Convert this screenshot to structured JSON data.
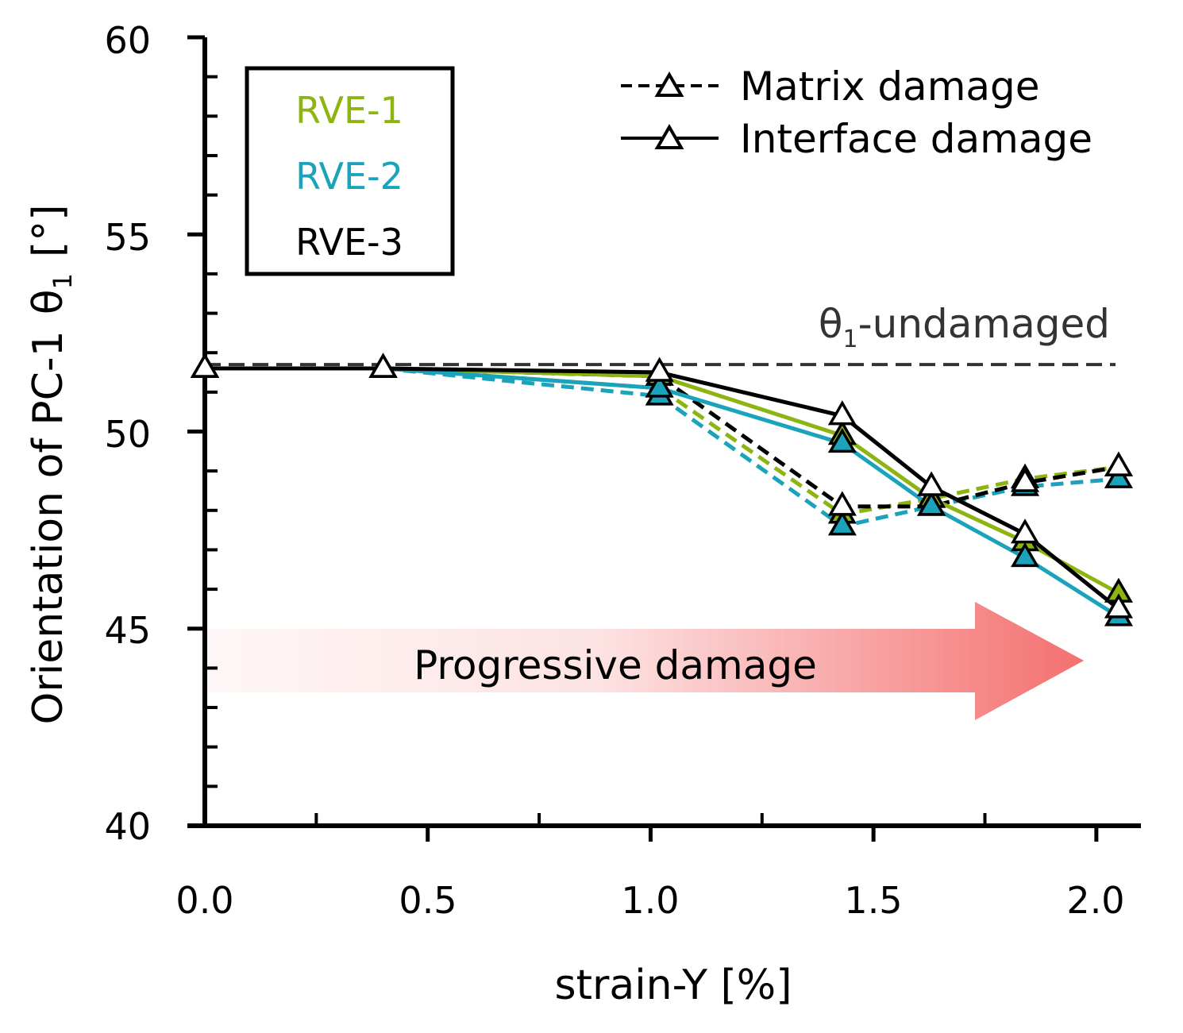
{
  "chart_data": {
    "type": "line",
    "xlabel": "strain-Y [%]",
    "ylabel": "Orientation of PC-1",
    "ylabel_symbol": "θ",
    "ylabel_subscript": "1",
    "ylabel_unit": "[°]",
    "xlim": [
      0.0,
      2.1
    ],
    "ylim": [
      40,
      60
    ],
    "x_ticks": [
      "0.0",
      "0.5",
      "1.0",
      "1.5",
      "2.0"
    ],
    "y_ticks": [
      "40",
      "45",
      "50",
      "55",
      "60"
    ],
    "rve_legend": [
      {
        "name": "RVE-1",
        "color": "#8DB511"
      },
      {
        "name": "RVE-2",
        "color": "#1AA3BA"
      },
      {
        "name": "RVE-3",
        "color": "#000000"
      }
    ],
    "style_legend": [
      {
        "label": "Matrix damage",
        "linestyle": "dashed"
      },
      {
        "label": "Interface damage",
        "linestyle": "solid"
      }
    ],
    "reference_line": {
      "symbol": "θ",
      "subscript": "1",
      "suffix": "-undamaged",
      "value": 51.7,
      "color": "#333333"
    },
    "annotation": {
      "text": "Progressive damage",
      "color": "#F47070"
    },
    "series": [
      {
        "name": "RVE-1",
        "damage": "Matrix damage",
        "color": "#8DB511",
        "x": [
          0.0,
          0.4,
          1.02,
          1.43,
          1.63,
          1.84,
          2.05
        ],
        "y": [
          51.6,
          51.6,
          51.1,
          47.9,
          48.3,
          48.8,
          49.1
        ]
      },
      {
        "name": "RVE-2",
        "damage": "Matrix damage",
        "color": "#1AA3BA",
        "x": [
          0.0,
          0.4,
          1.02,
          1.43,
          1.63,
          1.84,
          2.05
        ],
        "y": [
          51.6,
          51.6,
          50.9,
          47.6,
          48.1,
          48.6,
          48.8
        ]
      },
      {
        "name": "RVE-3",
        "damage": "Matrix damage",
        "color": "#000000",
        "x": [
          0.0,
          0.4,
          1.02,
          1.43,
          1.63,
          1.84,
          2.05
        ],
        "y": [
          51.6,
          51.6,
          51.4,
          48.1,
          48.1,
          48.7,
          49.1
        ]
      },
      {
        "name": "RVE-1",
        "damage": "Interface damage",
        "color": "#8DB511",
        "x": [
          0.0,
          0.4,
          1.02,
          1.43,
          1.63,
          1.84,
          2.05
        ],
        "y": [
          51.6,
          51.6,
          51.4,
          49.9,
          48.3,
          47.2,
          45.9
        ]
      },
      {
        "name": "RVE-2",
        "damage": "Interface damage",
        "color": "#1AA3BA",
        "x": [
          0.0,
          0.4,
          1.02,
          1.43,
          1.63,
          1.84,
          2.05
        ],
        "y": [
          51.6,
          51.6,
          51.1,
          49.7,
          48.1,
          46.8,
          45.3
        ]
      },
      {
        "name": "RVE-3",
        "damage": "Interface damage",
        "color": "#000000",
        "x": [
          0.0,
          0.4,
          1.02,
          1.43,
          1.63,
          1.84,
          2.05
        ],
        "y": [
          51.6,
          51.6,
          51.5,
          50.4,
          48.6,
          47.4,
          45.5
        ]
      }
    ]
  }
}
